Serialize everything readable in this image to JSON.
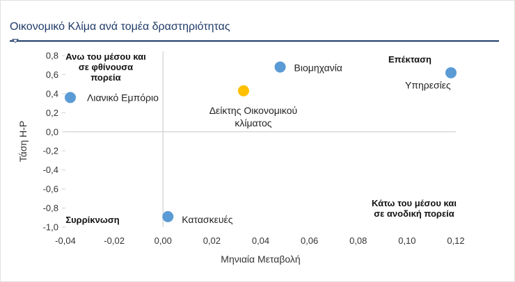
{
  "title": "Οικονομικό Κλίμα ανά τομέα δραστηριότητας",
  "chart_data": {
    "type": "scatter",
    "xlabel": "Μηνιαία Μεταβολή",
    "ylabel": "Τάση Η-Ρ",
    "xlim": [
      -0.04,
      0.12
    ],
    "ylim": [
      -1.0,
      0.8
    ],
    "x_ticks": [
      "-0,04",
      "-0,02",
      "0,00",
      "0,02",
      "0,04",
      "0,06",
      "0,08",
      "0,10",
      "0,12"
    ],
    "y_ticks": [
      "0,8",
      "0,6",
      "0,4",
      "0,2",
      "0,0",
      "-0,2",
      "-0,4",
      "-0,6",
      "-0,8",
      "-1,0"
    ],
    "grid": false,
    "points": [
      {
        "label": [
          "Λιανικό Εμπόριο"
        ],
        "x": -0.038,
        "y": 0.36,
        "color": "#5b9bd5"
      },
      {
        "label": [
          "Βιομηχανία"
        ],
        "x": 0.048,
        "y": 0.68,
        "color": "#5b9bd5"
      },
      {
        "label": [
          "Υπηρεσίες"
        ],
        "x": 0.118,
        "y": 0.62,
        "color": "#5b9bd5"
      },
      {
        "label": [
          "Δείκτης Οικονομικού",
          "κλίματος"
        ],
        "x": 0.033,
        "y": 0.43,
        "color": "#ffc000"
      },
      {
        "label": [
          "Κατασκευές"
        ],
        "x": 0.002,
        "y": -0.89,
        "color": "#5b9bd5"
      }
    ],
    "quadrant_labels": [
      {
        "lines": [
          "Ανω του μέσου και",
          "σε φθίνουσα",
          "πορεία"
        ]
      },
      {
        "lines": [
          "Επέκταση"
        ]
      },
      {
        "lines": [
          "Συρρίκνωση"
        ]
      },
      {
        "lines": [
          "Κάτω του μέσου και",
          "σε ανοδική πορεία"
        ]
      }
    ]
  }
}
